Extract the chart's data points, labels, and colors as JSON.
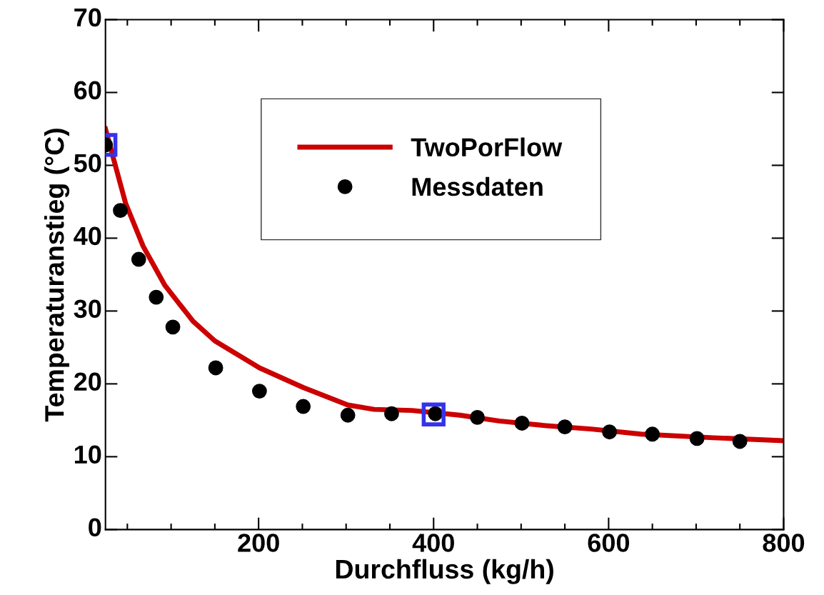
{
  "chart_data": {
    "type": "line",
    "xlabel": "Durchfluss (kg/h)",
    "ylabel": "Temperaturanstieg (°C)",
    "xlim": [
      25,
      800
    ],
    "xticks": [
      200,
      400,
      600,
      800
    ],
    "ylim": [
      0,
      70
    ],
    "yticks": [
      0,
      10,
      20,
      30,
      40,
      50,
      60,
      70
    ],
    "grid": false,
    "legend": "top",
    "series": [
      {
        "name": "TwoPorFlow",
        "type": "line",
        "color": "#cc0000",
        "marker": "none",
        "line_style": "solid",
        "x": [
          25,
          36,
          48,
          68,
          93,
          125,
          150,
          201,
          251,
          302,
          332,
          375,
          430,
          475,
          525,
          580,
          637,
          720,
          800
        ],
        "values": [
          55,
          50.1,
          44.8,
          38.9,
          33.5,
          28.6,
          25.9,
          22.2,
          19.5,
          17.1,
          16.5,
          16.35,
          15.7,
          14.9,
          14.3,
          13.8,
          13.1,
          12.6,
          12.2
        ]
      },
      {
        "name": "Messdaten",
        "type": "scatter",
        "color": "#000000",
        "marker": "circle",
        "x": [
          25,
          42,
          63,
          83,
          102,
          151,
          201,
          251,
          302,
          352,
          402,
          450,
          501,
          550,
          601,
          650,
          701,
          750
        ],
        "values": [
          52.8,
          43.8,
          37.1,
          31.9,
          27.8,
          22.2,
          19.0,
          16.9,
          15.7,
          15.9,
          15.9,
          15.4,
          14.6,
          14.1,
          13.4,
          13.1,
          12.5,
          12.1
        ]
      },
      {
        "type": "scatter",
        "color": "#3333ee",
        "marker": "square",
        "x": [
          25,
          400
        ],
        "values": [
          52.8,
          15.8
        ]
      }
    ]
  }
}
